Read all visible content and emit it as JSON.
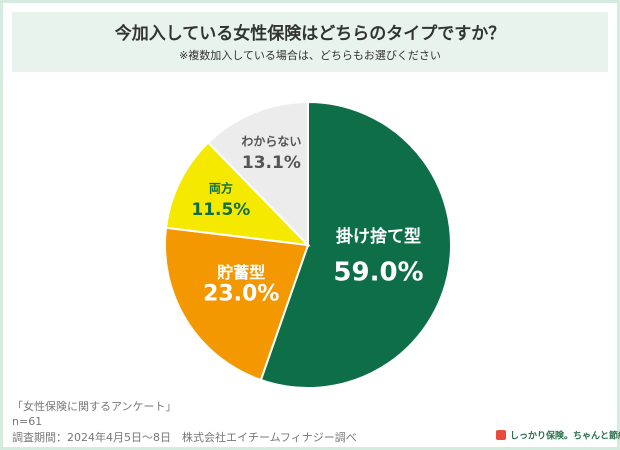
{
  "chart_data": {
    "type": "pie",
    "title": "今加入している女性保険はどちらのタイプですか？",
    "subtitle": "※複数加入している場合は、どちらもお選びください",
    "categories": [
      "掛け捨て型",
      "貯蓄型",
      "両方",
      "わからない"
    ],
    "values": [
      59.0,
      23.0,
      11.5,
      13.1
    ],
    "value_labels": [
      "59.0%",
      "23.0%",
      "11.5%",
      "13.1%"
    ],
    "colors": [
      "#0e6e48",
      "#f39800",
      "#f5e900",
      "#ececec"
    ],
    "footnotes": [
      "「女性保険に関するアンケート」",
      "n=61",
      "調査期間：2024年4月5日〜8日　株式会社エイチームフィナジー調べ"
    ],
    "logo": "しっかり保険。ちゃんと節約。"
  }
}
